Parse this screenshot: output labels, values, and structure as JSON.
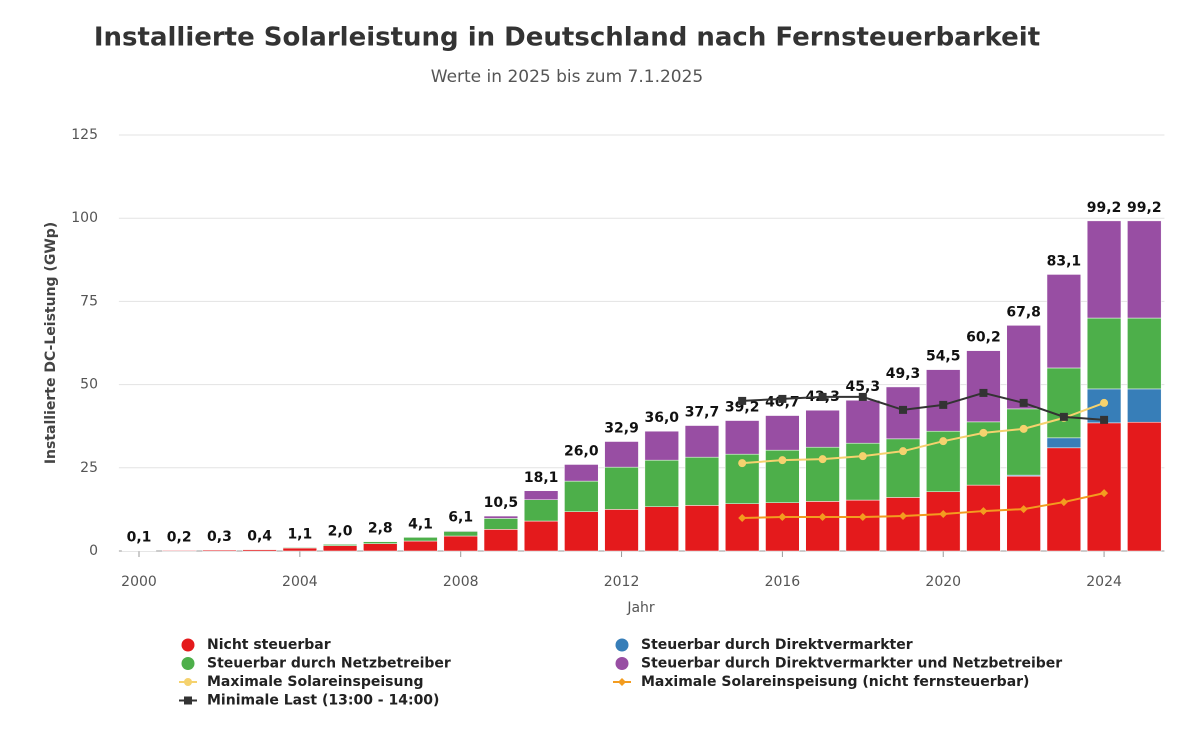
{
  "chart_data": {
    "type": "stacked_bar_line",
    "title": "Installierte Solarleistung in Deutschland nach Fernsteuerbarkeit",
    "subtitle": "Werte in 2025 bis zum 7.1.2025",
    "y_label": "Installierte DC-Leistung (GWp)",
    "x_label": "Jahr",
    "x": [
      2000,
      2001,
      2002,
      2003,
      2004,
      2005,
      2006,
      2007,
      2008,
      2009,
      2010,
      2011,
      2012,
      2013,
      2014,
      2015,
      2016,
      2017,
      2018,
      2019,
      2020,
      2021,
      2022,
      2023,
      2024,
      2025
    ],
    "xlim": [
      1999.5,
      2025.5
    ],
    "xticks": [
      2000,
      2004,
      2008,
      2012,
      2016,
      2020,
      2024
    ],
    "ylim": [
      0,
      125
    ],
    "yticks": [
      0,
      25,
      50,
      75,
      100,
      125
    ],
    "grid": true,
    "series": [
      {
        "name": "Nicht steuerbar",
        "kind": "bar",
        "color": "#e41a1c",
        "values": [
          0.1,
          0.2,
          0.3,
          0.4,
          0.9,
          1.6,
          2.2,
          3.0,
          4.5,
          6.5,
          9.0,
          11.8,
          12.5,
          13.3,
          13.7,
          14.2,
          14.5,
          14.9,
          15.3,
          16.1,
          17.8,
          19.8,
          22.5,
          31.0,
          38.5,
          38.7
        ]
      },
      {
        "name": "Steuerbar durch Direktvermarkter",
        "kind": "bar",
        "color": "#377eb8",
        "values": [
          0,
          0,
          0,
          0,
          0,
          0,
          0,
          0,
          0,
          0,
          0,
          0,
          0,
          0,
          0,
          0,
          0,
          0,
          0,
          0,
          0,
          0,
          0.3,
          3.0,
          10.2,
          10.0
        ]
      },
      {
        "name": "Steuerbar durch Netzbetreiber",
        "kind": "bar",
        "color": "#4daf4a",
        "values": [
          0,
          0,
          0,
          0,
          0.2,
          0.4,
          0.6,
          1.1,
          1.4,
          3.3,
          6.4,
          9.2,
          12.7,
          14.0,
          14.5,
          14.9,
          15.8,
          16.3,
          17.1,
          17.6,
          18.2,
          19.0,
          19.9,
          21.0,
          21.3,
          21.3
        ]
      },
      {
        "name": "Steuerbar durch Direktvermarkter und Netzbetreiber",
        "kind": "bar",
        "color": "#984ea3",
        "values": [
          0,
          0,
          0,
          0,
          0,
          0,
          0,
          0,
          0.2,
          0.7,
          2.7,
          5.0,
          7.7,
          8.7,
          9.5,
          10.1,
          10.4,
          11.1,
          12.9,
          15.6,
          18.5,
          21.4,
          25.1,
          28.1,
          29.2,
          29.2
        ]
      },
      {
        "name": "Maximale Solareinspeisung",
        "kind": "line",
        "marker": "circle",
        "color": "#f5d26e",
        "values": [
          null,
          null,
          null,
          null,
          null,
          null,
          null,
          null,
          null,
          null,
          null,
          null,
          null,
          null,
          null,
          26.4,
          27.3,
          27.6,
          28.5,
          30.0,
          33.0,
          35.5,
          36.7,
          40.0,
          44.5,
          null
        ]
      },
      {
        "name": "Maximale Solareinspeisung (nicht fernsteuerbar)",
        "kind": "line",
        "marker": "diamond",
        "color": "#f39c1f",
        "values": [
          null,
          null,
          null,
          null,
          null,
          null,
          null,
          null,
          null,
          null,
          null,
          null,
          null,
          null,
          null,
          9.9,
          10.2,
          10.2,
          10.2,
          10.5,
          11.1,
          12.0,
          12.6,
          14.7,
          17.4,
          null
        ]
      },
      {
        "name": "Minimale Last (13:00 - 14:00)",
        "kind": "line",
        "marker": "square",
        "color": "#333333",
        "values": [
          null,
          null,
          null,
          null,
          null,
          null,
          null,
          null,
          null,
          null,
          null,
          null,
          null,
          null,
          null,
          45.1,
          45.7,
          46.3,
          46.3,
          42.4,
          43.9,
          47.5,
          44.5,
          40.3,
          39.4,
          null
        ]
      }
    ],
    "total_labels": [
      "0,1",
      "0,2",
      "0,3",
      "0,4",
      "1,1",
      "2,0",
      "2,8",
      "4,1",
      "6,1",
      "10,5",
      "18,1",
      "26,0",
      "32,9",
      "36,0",
      "37,7",
      "39,2",
      "40,7",
      "42,3",
      "45,3",
      "49,3",
      "54,5",
      "60,2",
      "67,8",
      "83,1",
      "99,2",
      "99,2"
    ]
  }
}
